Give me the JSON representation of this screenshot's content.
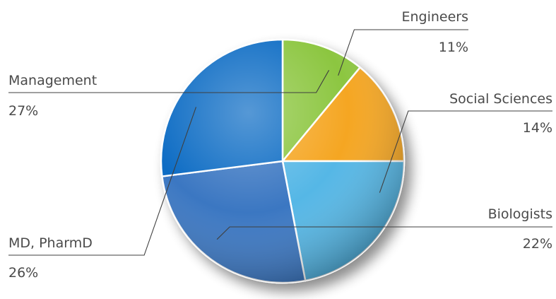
{
  "chart_data": {
    "type": "pie",
    "title": "",
    "start_angle_deg": 90,
    "direction": "clockwise",
    "slices": [
      {
        "label": "Engineers",
        "value": 11,
        "value_label": "11%",
        "color": "#8cc63f"
      },
      {
        "label": "Social Sciences",
        "value": 14,
        "value_label": "14%",
        "color": "#f5a623"
      },
      {
        "label": "Biologists",
        "value": 22,
        "value_label": "22%",
        "color": "#55b7e6"
      },
      {
        "label": "MD, PharmD",
        "value": 26,
        "value_label": "26%",
        "color": "#3a77c2"
      },
      {
        "label": "Management",
        "value": 27,
        "value_label": "27%",
        "color": "#0a6cc4"
      }
    ]
  }
}
